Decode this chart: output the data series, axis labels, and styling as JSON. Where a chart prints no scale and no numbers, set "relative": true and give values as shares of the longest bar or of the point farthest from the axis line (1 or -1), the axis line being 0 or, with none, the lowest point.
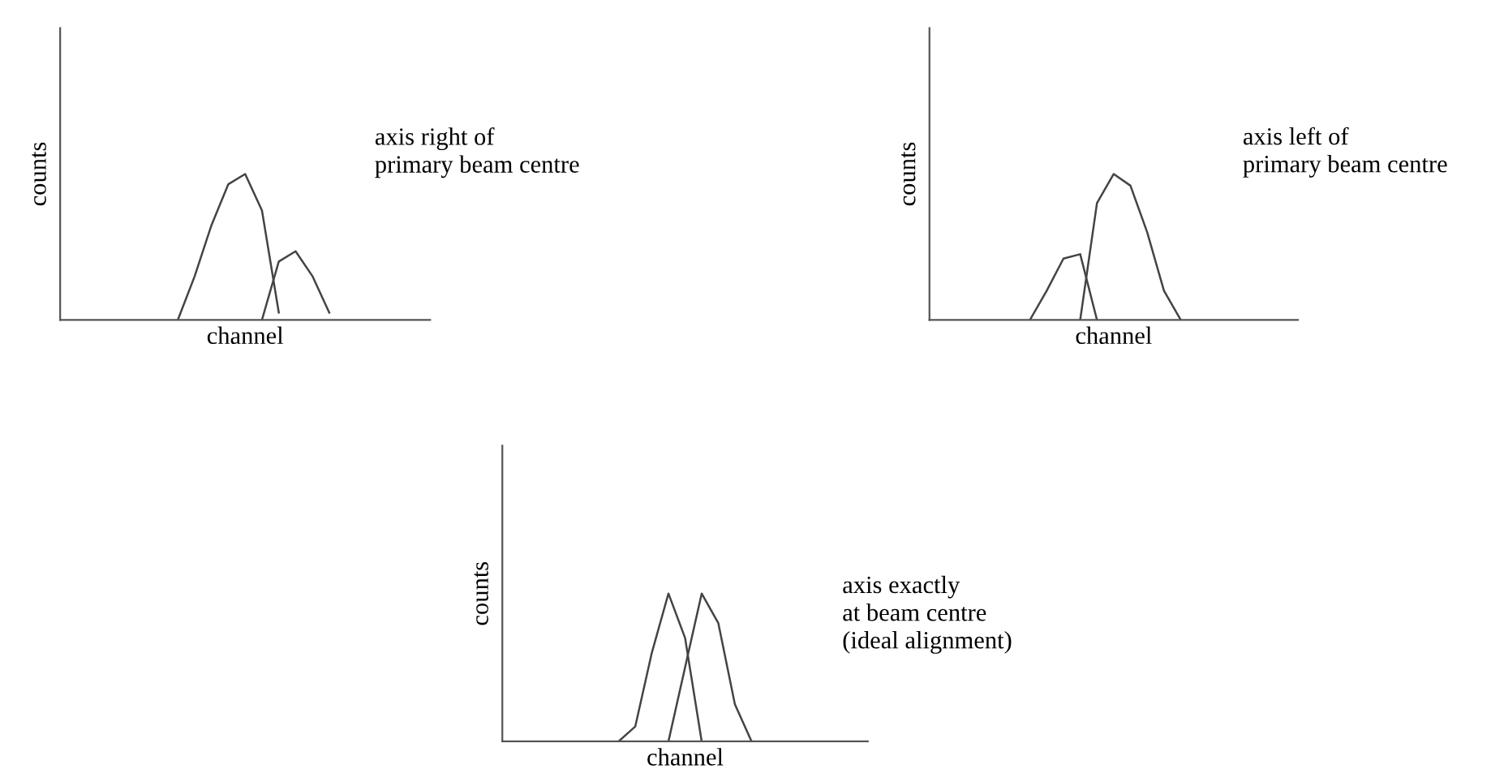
{
  "chart_data": [
    {
      "type": "line",
      "relative": true,
      "xlabel": "channel",
      "ylabel": "counts",
      "marker": "none",
      "line_style": "solid",
      "categories": [
        null,
        null,
        null,
        null,
        null,
        null,
        null,
        null,
        null,
        null,
        null,
        null,
        null,
        null,
        null,
        null,
        null,
        null,
        null,
        null,
        null,
        null,
        null
      ],
      "series": [
        {
          "color": "#444444",
          "values": [
            null,
            null,
            null,
            null,
            null,
            null,
            null,
            0.0,
            0.3,
            0.65,
            0.93,
            1.0,
            0.75,
            0.05,
            null,
            null,
            null,
            null,
            null,
            null,
            null,
            null,
            null
          ]
        },
        {
          "color": "#444444",
          "values": [
            null,
            null,
            null,
            null,
            null,
            null,
            null,
            null,
            null,
            null,
            null,
            null,
            0.0,
            0.4,
            0.47,
            0.3,
            0.05,
            null,
            null,
            null,
            null,
            null,
            null
          ]
        }
      ],
      "annotations": [
        "axis right of\nprimary beam centre"
      ]
    },
    {
      "type": "line",
      "relative": true,
      "xlabel": "channel",
      "ylabel": "counts",
      "marker": "none",
      "line_style": "solid",
      "categories": [
        null,
        null,
        null,
        null,
        null,
        null,
        null,
        null,
        null,
        null,
        null,
        null,
        null,
        null,
        null,
        null,
        null,
        null,
        null,
        null,
        null,
        null,
        null
      ],
      "series": [
        {
          "color": "#444444",
          "values": [
            null,
            null,
            null,
            null,
            null,
            null,
            0.0,
            0.2,
            0.42,
            0.45,
            0.0,
            null,
            null,
            null,
            null,
            null,
            null,
            null,
            null,
            null,
            null,
            null,
            null
          ]
        },
        {
          "color": "#444444",
          "values": [
            null,
            null,
            null,
            null,
            null,
            null,
            null,
            null,
            null,
            0.0,
            0.8,
            1.0,
            0.92,
            0.6,
            0.2,
            0.0,
            null,
            null,
            null,
            null,
            null,
            null,
            null
          ]
        }
      ],
      "annotations": [
        "axis left of\nprimary beam centre"
      ]
    },
    {
      "type": "line",
      "relative": true,
      "xlabel": "channel",
      "ylabel": "counts",
      "marker": "none",
      "line_style": "solid",
      "categories": [
        null,
        null,
        null,
        null,
        null,
        null,
        null,
        null,
        null,
        null,
        null,
        null,
        null,
        null,
        null,
        null,
        null,
        null,
        null,
        null,
        null,
        null,
        null
      ],
      "series": [
        {
          "color": "#444444",
          "values": [
            null,
            null,
            null,
            null,
            null,
            null,
            null,
            0.0,
            0.1,
            0.6,
            1.0,
            0.7,
            0.0,
            null,
            null,
            null,
            null,
            null,
            null,
            null,
            null,
            null,
            null
          ]
        },
        {
          "color": "#444444",
          "values": [
            null,
            null,
            null,
            null,
            null,
            null,
            null,
            null,
            null,
            null,
            0.0,
            0.5,
            1.0,
            0.8,
            0.25,
            0.0,
            null,
            null,
            null,
            null,
            null,
            null,
            null
          ]
        }
      ],
      "annotations": [
        "axis exactly\nat beam centre\n(ideal alignment)"
      ]
    }
  ]
}
